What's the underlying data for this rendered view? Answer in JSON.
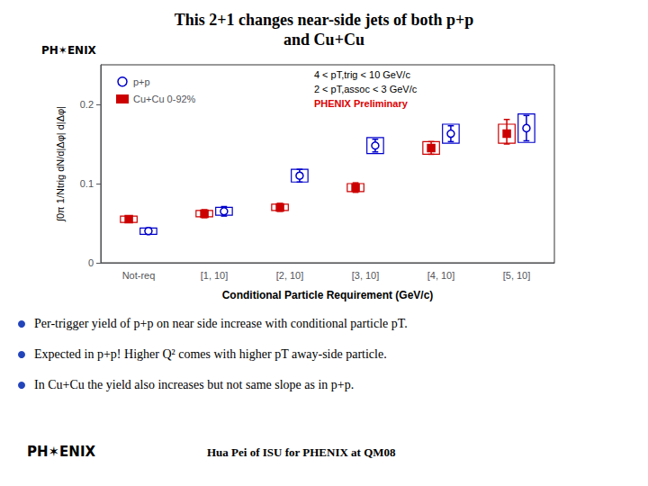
{
  "chart_data": {
    "type": "errorbar",
    "title": "This 2+1 changes near-side jets of both p+p\nand Cu+Cu",
    "xlabel": "Conditional Particle Requirement (GeV/c)",
    "ylabel": "∫0π 1/Ntrig dN/d|Δφ| d|Δφ|",
    "categories": [
      "Not-req",
      "[1, 10]",
      "[2, 10]",
      "[3, 10]",
      "[4, 10]",
      "[5, 10]"
    ],
    "series": [
      {
        "name": "p+p",
        "color": "#0000cc",
        "marker": "circle",
        "values": [
          0.04,
          0.065,
          0.11,
          0.148,
          0.163,
          0.17
        ],
        "err_lo": [
          0.004,
          0.006,
          0.008,
          0.008,
          0.01,
          0.016
        ],
        "err_hi": [
          0.004,
          0.006,
          0.008,
          0.008,
          0.01,
          0.016
        ],
        "sys_lo": [
          0.004,
          0.005,
          0.008,
          0.01,
          0.012,
          0.018
        ],
        "sys_hi": [
          0.004,
          0.005,
          0.008,
          0.01,
          0.012,
          0.018
        ]
      },
      {
        "name": "Cu+Cu 0-92%",
        "color": "#cc0000",
        "marker": "square",
        "values": [
          0.055,
          0.062,
          0.07,
          0.095,
          0.145,
          0.163
        ],
        "err_lo": [
          0.004,
          0.005,
          0.005,
          0.006,
          0.008,
          0.013
        ],
        "err_hi": [
          0.004,
          0.005,
          0.005,
          0.006,
          0.008,
          0.018
        ],
        "sys_lo": [
          0.004,
          0.004,
          0.004,
          0.005,
          0.008,
          0.012
        ],
        "sys_hi": [
          0.004,
          0.004,
          0.004,
          0.005,
          0.008,
          0.012
        ]
      }
    ],
    "ylim": [
      0,
      0.25
    ],
    "yticks": [
      0,
      0.1,
      0.2
    ],
    "grid": false,
    "legend": "upper left",
    "annotations": [
      "4 < pT,trig < 10 GeV/c",
      "2 < pT,assoc < 3 GeV/c",
      "PHENIX Preliminary"
    ],
    "watermark": "PH✶ENIX",
    "bullets": [
      "Per-trigger yield of p+p on near side increase with conditional particle pT.",
      "Expected in p+p! Higher Q² comes with higher pT away-side particle.",
      "In Cu+Cu the yield also increases but not same slope as in p+p."
    ],
    "footer": [
      "PH✶ENIX",
      "Hua Pei of ISU for PHENIX at QM08"
    ]
  }
}
